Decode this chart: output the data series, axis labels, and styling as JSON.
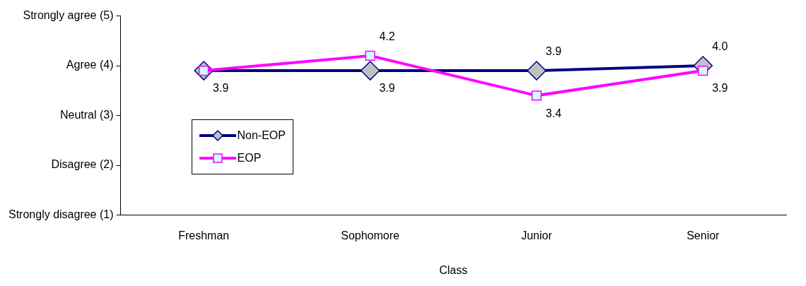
{
  "chart_data": {
    "type": "line",
    "xlabel": "Class",
    "categories": [
      "Freshman",
      "Sophomore",
      "Junior",
      "Senior"
    ],
    "series": [
      {
        "name": "Non-EOP",
        "color": "#000080",
        "marker": "diamond",
        "values": [
          3.9,
          3.9,
          3.9,
          4.0
        ],
        "value_labels": [
          null,
          "3.9",
          "3.9",
          "4.0"
        ]
      },
      {
        "name": "EOP",
        "color": "#ff00ff",
        "marker": "square",
        "values": [
          3.9,
          4.2,
          3.4,
          3.9
        ],
        "value_labels": [
          "3.9",
          "4.2",
          "3.4",
          "3.9"
        ]
      }
    ],
    "ylim": [
      1,
      5
    ],
    "yticks": [
      {
        "value": 1,
        "label": "Strongly disagree (1)"
      },
      {
        "value": 2,
        "label": "Disagree (2)"
      },
      {
        "value": 3,
        "label": "Neutral (3)"
      },
      {
        "value": 4,
        "label": "Agree (4)"
      },
      {
        "value": 5,
        "label": "Strongly agree (5)"
      }
    ],
    "grid": false,
    "legend": "left",
    "line_style": "solid"
  }
}
